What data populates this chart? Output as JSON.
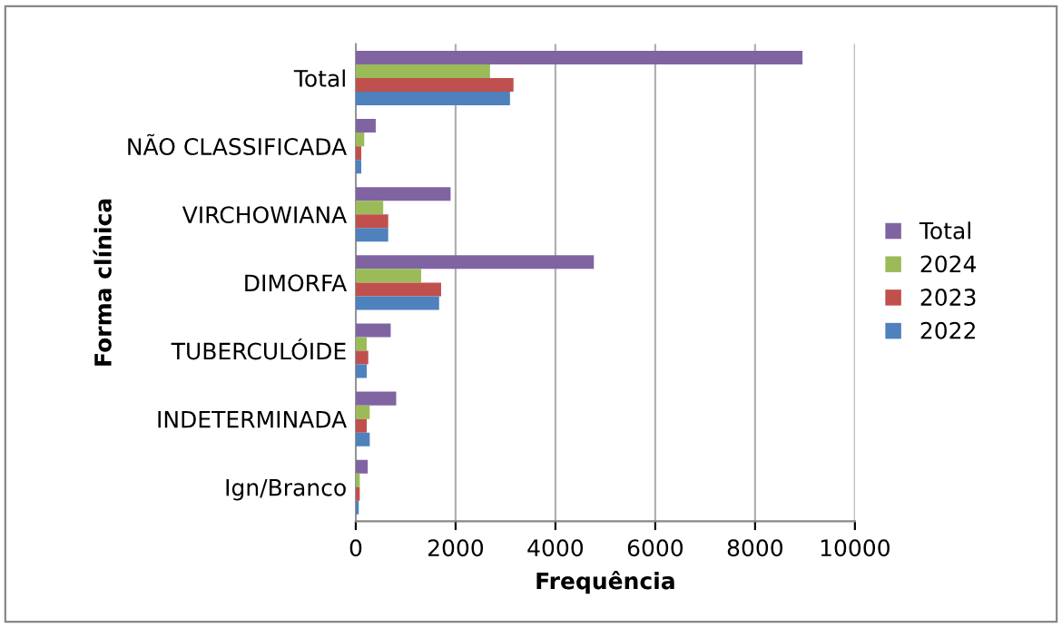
{
  "chart_data": {
    "type": "bar",
    "orientation": "horizontal",
    "xlabel": "Frequência",
    "ylabel": "Forma clínica",
    "categories": [
      "Total",
      "NÃO CLASSIFICADA",
      "VIRCHOWIANA",
      "DIMORFA",
      "TUBERCULÓIDE",
      "INDETERMINADA",
      "Ign/Branco"
    ],
    "series": [
      {
        "name": "Total",
        "color": "#8064a2",
        "values": [
          8950,
          400,
          1900,
          4770,
          700,
          810,
          240
        ]
      },
      {
        "name": "2024",
        "color": "#9bbb59",
        "values": [
          2690,
          170,
          550,
          1310,
          220,
          280,
          80
        ]
      },
      {
        "name": "2023",
        "color": "#c0504d",
        "values": [
          3160,
          110,
          650,
          1710,
          250,
          220,
          80
        ]
      },
      {
        "name": "2022",
        "color": "#4f81bd",
        "values": [
          3090,
          110,
          650,
          1670,
          220,
          280,
          60
        ]
      }
    ],
    "xlim": [
      0,
      10000
    ],
    "xticks": [
      0,
      2000,
      4000,
      6000,
      8000,
      10000
    ],
    "grid": "x",
    "legend": "right"
  }
}
